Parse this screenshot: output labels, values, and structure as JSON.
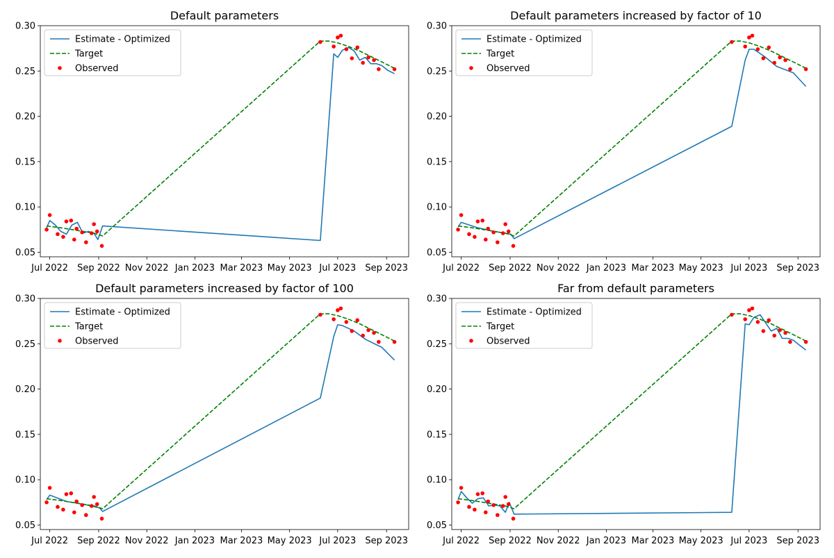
{
  "chart_data": [
    {
      "type": "line",
      "title": "Default parameters",
      "xlabel": "",
      "ylabel": "",
      "xlim": [
        "2022-06-19",
        "2023-09-29"
      ],
      "ylim": [
        0.045,
        0.3
      ],
      "x_ticks": [
        "2022-07-01",
        "2022-09-01",
        "2022-11-01",
        "2023-01-01",
        "2023-03-01",
        "2023-05-01",
        "2023-07-01",
        "2023-09-01"
      ],
      "x_tick_labels": [
        "Jul 2022",
        "Sep 2022",
        "Nov 2022",
        "Jan 2023",
        "Mar 2023",
        "May 2023",
        "Jul 2023",
        "Sep 2023"
      ],
      "y_ticks": [
        0.05,
        0.1,
        0.15,
        0.2,
        0.25,
        0.3
      ],
      "y_tick_labels": [
        "0.05",
        "0.10",
        "0.15",
        "0.20",
        "0.25",
        "0.30"
      ],
      "grid": false,
      "legend_position": "top-left",
      "series": [
        {
          "name": "Estimate - Optimized",
          "style": "solid",
          "color": "#1f77b4",
          "x": [
            "2022-06-27",
            "2022-07-01",
            "2022-07-08",
            "2022-07-15",
            "2022-07-22",
            "2022-07-29",
            "2022-08-05",
            "2022-08-12",
            "2022-08-19",
            "2022-08-26",
            "2022-08-31",
            "2022-09-06",
            "2023-06-09",
            "2023-06-26",
            "2023-07-01",
            "2023-07-07",
            "2023-07-15",
            "2023-07-22",
            "2023-07-29",
            "2023-08-05",
            "2023-08-12",
            "2023-08-19",
            "2023-08-26",
            "2023-09-02",
            "2023-09-11"
          ],
          "y": [
            0.077,
            0.085,
            0.08,
            0.073,
            0.07,
            0.08,
            0.083,
            0.071,
            0.073,
            0.071,
            0.064,
            0.079,
            0.063,
            0.269,
            0.265,
            0.273,
            0.276,
            0.272,
            0.262,
            0.265,
            0.258,
            0.258,
            0.256,
            0.251,
            0.247
          ]
        },
        {
          "name": "Target",
          "style": "dashed",
          "color": "#008000",
          "x": [
            "2022-06-27",
            "2022-07-15",
            "2022-08-05",
            "2022-08-26",
            "2022-09-06",
            "2023-06-09",
            "2023-06-20",
            "2023-07-01",
            "2023-07-15",
            "2023-07-29",
            "2023-08-12",
            "2023-08-26",
            "2023-09-11"
          ],
          "y": [
            0.079,
            0.077,
            0.074,
            0.071,
            0.068,
            0.283,
            0.283,
            0.281,
            0.277,
            0.272,
            0.266,
            0.26,
            0.253
          ]
        },
        {
          "name": "Observed",
          "style": "points",
          "color": "#ff0000",
          "x": [
            "2022-06-27",
            "2022-07-01",
            "2022-07-11",
            "2022-07-18",
            "2022-07-22",
            "2022-07-28",
            "2022-08-01",
            "2022-08-04",
            "2022-08-11",
            "2022-08-16",
            "2022-08-23",
            "2022-08-26",
            "2022-08-30",
            "2022-09-05",
            "2023-06-09",
            "2023-06-26",
            "2023-07-01",
            "2023-07-05",
            "2023-07-12",
            "2023-07-19",
            "2023-07-26",
            "2023-08-02",
            "2023-08-09",
            "2023-08-16",
            "2023-08-22",
            "2023-09-11"
          ],
          "y": [
            0.075,
            0.091,
            0.07,
            0.067,
            0.084,
            0.085,
            0.064,
            0.076,
            0.072,
            0.061,
            0.071,
            0.081,
            0.073,
            0.057,
            0.282,
            0.277,
            0.287,
            0.289,
            0.274,
            0.264,
            0.276,
            0.259,
            0.265,
            0.262,
            0.252,
            0.252
          ]
        }
      ]
    },
    {
      "type": "line",
      "title": "Default parameters increased by factor of 10",
      "xlabel": "",
      "ylabel": "",
      "xlim": [
        "2022-06-19",
        "2023-09-29"
      ],
      "ylim": [
        0.045,
        0.3
      ],
      "x_ticks": [
        "2022-07-01",
        "2022-09-01",
        "2022-11-01",
        "2023-01-01",
        "2023-03-01",
        "2023-05-01",
        "2023-07-01",
        "2023-09-01"
      ],
      "x_tick_labels": [
        "Jul 2022",
        "Sep 2022",
        "Nov 2022",
        "Jan 2023",
        "Mar 2023",
        "May 2023",
        "Jul 2023",
        "Sep 2023"
      ],
      "y_ticks": [
        0.05,
        0.1,
        0.15,
        0.2,
        0.25,
        0.3
      ],
      "y_tick_labels": [
        "0.05",
        "0.10",
        "0.15",
        "0.20",
        "0.25",
        "0.30"
      ],
      "grid": false,
      "legend_position": "top-left",
      "series": [
        {
          "name": "Estimate - Optimized",
          "style": "solid",
          "color": "#1f77b4",
          "x": [
            "2022-06-27",
            "2022-07-01",
            "2022-07-22",
            "2022-08-12",
            "2022-09-02",
            "2022-09-06",
            "2023-06-09",
            "2023-06-26",
            "2023-07-01",
            "2023-07-07",
            "2023-07-22",
            "2023-08-05",
            "2023-08-26",
            "2023-09-11"
          ],
          "y": [
            0.078,
            0.083,
            0.077,
            0.073,
            0.07,
            0.065,
            0.189,
            0.262,
            0.274,
            0.274,
            0.265,
            0.255,
            0.248,
            0.233
          ]
        },
        {
          "name": "Target",
          "style": "dashed",
          "color": "#008000",
          "x": [
            "2022-06-27",
            "2022-07-15",
            "2022-08-05",
            "2022-08-26",
            "2022-09-06",
            "2023-06-09",
            "2023-06-20",
            "2023-07-01",
            "2023-07-15",
            "2023-07-29",
            "2023-08-12",
            "2023-08-26",
            "2023-09-11"
          ],
          "y": [
            0.079,
            0.077,
            0.074,
            0.071,
            0.068,
            0.283,
            0.283,
            0.281,
            0.277,
            0.272,
            0.266,
            0.26,
            0.253
          ]
        },
        {
          "name": "Observed",
          "style": "points",
          "color": "#ff0000",
          "x": [
            "2022-06-27",
            "2022-07-01",
            "2022-07-11",
            "2022-07-18",
            "2022-07-22",
            "2022-07-28",
            "2022-08-01",
            "2022-08-04",
            "2022-08-11",
            "2022-08-16",
            "2022-08-23",
            "2022-08-26",
            "2022-08-30",
            "2022-09-05",
            "2023-06-09",
            "2023-06-26",
            "2023-07-01",
            "2023-07-05",
            "2023-07-12",
            "2023-07-19",
            "2023-07-26",
            "2023-08-02",
            "2023-08-09",
            "2023-08-16",
            "2023-08-22",
            "2023-09-11"
          ],
          "y": [
            0.075,
            0.091,
            0.07,
            0.067,
            0.084,
            0.085,
            0.064,
            0.076,
            0.072,
            0.061,
            0.071,
            0.081,
            0.073,
            0.057,
            0.282,
            0.277,
            0.287,
            0.289,
            0.274,
            0.264,
            0.276,
            0.259,
            0.265,
            0.262,
            0.252,
            0.252
          ]
        }
      ]
    },
    {
      "type": "line",
      "title": "Default parameters increased by factor of 100",
      "xlabel": "",
      "ylabel": "",
      "xlim": [
        "2022-06-19",
        "2023-09-29"
      ],
      "ylim": [
        0.045,
        0.3
      ],
      "x_ticks": [
        "2022-07-01",
        "2022-09-01",
        "2022-11-01",
        "2023-01-01",
        "2023-03-01",
        "2023-05-01",
        "2023-07-01",
        "2023-09-01"
      ],
      "x_tick_labels": [
        "Jul 2022",
        "Sep 2022",
        "Nov 2022",
        "Jan 2023",
        "Mar 2023",
        "May 2023",
        "Jul 2023",
        "Sep 2023"
      ],
      "y_ticks": [
        0.05,
        0.1,
        0.15,
        0.2,
        0.25,
        0.3
      ],
      "y_tick_labels": [
        "0.05",
        "0.10",
        "0.15",
        "0.20",
        "0.25",
        "0.30"
      ],
      "grid": false,
      "legend_position": "top-left",
      "series": [
        {
          "name": "Estimate - Optimized",
          "style": "solid",
          "color": "#1f77b4",
          "x": [
            "2022-06-27",
            "2022-07-01",
            "2022-07-22",
            "2022-08-12",
            "2022-09-02",
            "2022-09-06",
            "2023-06-09",
            "2023-06-26",
            "2023-07-01",
            "2023-07-07",
            "2023-07-22",
            "2023-08-05",
            "2023-08-26",
            "2023-09-11"
          ],
          "y": [
            0.078,
            0.083,
            0.076,
            0.073,
            0.069,
            0.065,
            0.19,
            0.258,
            0.271,
            0.27,
            0.264,
            0.255,
            0.246,
            0.232
          ]
        },
        {
          "name": "Target",
          "style": "dashed",
          "color": "#008000",
          "x": [
            "2022-06-27",
            "2022-07-15",
            "2022-08-05",
            "2022-08-26",
            "2022-09-06",
            "2023-06-09",
            "2023-06-20",
            "2023-07-01",
            "2023-07-15",
            "2023-07-29",
            "2023-08-12",
            "2023-08-26",
            "2023-09-11"
          ],
          "y": [
            0.079,
            0.077,
            0.074,
            0.071,
            0.068,
            0.283,
            0.283,
            0.281,
            0.277,
            0.272,
            0.266,
            0.26,
            0.253
          ]
        },
        {
          "name": "Observed",
          "style": "points",
          "color": "#ff0000",
          "x": [
            "2022-06-27",
            "2022-07-01",
            "2022-07-11",
            "2022-07-18",
            "2022-07-22",
            "2022-07-28",
            "2022-08-01",
            "2022-08-04",
            "2022-08-11",
            "2022-08-16",
            "2022-08-23",
            "2022-08-26",
            "2022-08-30",
            "2022-09-05",
            "2023-06-09",
            "2023-06-26",
            "2023-07-01",
            "2023-07-05",
            "2023-07-12",
            "2023-07-19",
            "2023-07-26",
            "2023-08-02",
            "2023-08-09",
            "2023-08-16",
            "2023-08-22",
            "2023-09-11"
          ],
          "y": [
            0.075,
            0.091,
            0.07,
            0.067,
            0.084,
            0.085,
            0.064,
            0.076,
            0.072,
            0.061,
            0.071,
            0.081,
            0.073,
            0.057,
            0.282,
            0.277,
            0.287,
            0.289,
            0.274,
            0.264,
            0.276,
            0.259,
            0.265,
            0.262,
            0.252,
            0.252
          ]
        }
      ]
    },
    {
      "type": "line",
      "title": "Far from default parameters",
      "xlabel": "",
      "ylabel": "",
      "xlim": [
        "2022-06-19",
        "2023-09-29"
      ],
      "ylim": [
        0.045,
        0.3
      ],
      "x_ticks": [
        "2022-07-01",
        "2022-09-01",
        "2022-11-01",
        "2023-01-01",
        "2023-03-01",
        "2023-05-01",
        "2023-07-01",
        "2023-09-01"
      ],
      "x_tick_labels": [
        "Jul 2022",
        "Sep 2022",
        "Nov 2022",
        "Jan 2023",
        "Mar 2023",
        "May 2023",
        "Jul 2023",
        "Sep 2023"
      ],
      "y_ticks": [
        0.05,
        0.1,
        0.15,
        0.2,
        0.25,
        0.3
      ],
      "y_tick_labels": [
        "0.05",
        "0.10",
        "0.15",
        "0.20",
        "0.25",
        "0.30"
      ],
      "grid": false,
      "legend_position": "top-left",
      "series": [
        {
          "name": "Estimate - Optimized",
          "style": "solid",
          "color": "#1f77b4",
          "x": [
            "2022-06-27",
            "2022-07-01",
            "2022-07-08",
            "2022-07-15",
            "2022-07-22",
            "2022-07-29",
            "2022-08-05",
            "2022-08-12",
            "2022-08-19",
            "2022-08-26",
            "2022-08-31",
            "2022-09-06",
            "2023-06-09",
            "2023-06-26",
            "2023-07-01",
            "2023-07-07",
            "2023-07-15",
            "2023-07-22",
            "2023-07-29",
            "2023-08-05",
            "2023-08-12",
            "2023-08-19",
            "2023-08-26",
            "2023-09-02",
            "2023-09-11"
          ],
          "y": [
            0.078,
            0.087,
            0.08,
            0.074,
            0.079,
            0.08,
            0.071,
            0.072,
            0.071,
            0.064,
            0.075,
            0.062,
            0.064,
            0.272,
            0.271,
            0.279,
            0.282,
            0.273,
            0.264,
            0.267,
            0.256,
            0.256,
            0.254,
            0.249,
            0.243
          ]
        },
        {
          "name": "Target",
          "style": "dashed",
          "color": "#008000",
          "x": [
            "2022-06-27",
            "2022-07-15",
            "2022-08-05",
            "2022-08-26",
            "2022-09-06",
            "2023-06-09",
            "2023-06-20",
            "2023-07-01",
            "2023-07-15",
            "2023-07-29",
            "2023-08-12",
            "2023-08-26",
            "2023-09-11"
          ],
          "y": [
            0.079,
            0.077,
            0.074,
            0.071,
            0.068,
            0.283,
            0.283,
            0.281,
            0.277,
            0.272,
            0.266,
            0.26,
            0.253
          ]
        },
        {
          "name": "Observed",
          "style": "points",
          "color": "#ff0000",
          "x": [
            "2022-06-27",
            "2022-07-01",
            "2022-07-11",
            "2022-07-18",
            "2022-07-22",
            "2022-07-28",
            "2022-08-01",
            "2022-08-04",
            "2022-08-11",
            "2022-08-16",
            "2022-08-23",
            "2022-08-26",
            "2022-08-30",
            "2022-09-05",
            "2023-06-09",
            "2023-06-26",
            "2023-07-01",
            "2023-07-05",
            "2023-07-12",
            "2023-07-19",
            "2023-07-26",
            "2023-08-02",
            "2023-08-09",
            "2023-08-16",
            "2023-08-22",
            "2023-09-11"
          ],
          "y": [
            0.075,
            0.091,
            0.07,
            0.067,
            0.084,
            0.085,
            0.064,
            0.076,
            0.072,
            0.061,
            0.071,
            0.081,
            0.073,
            0.057,
            0.282,
            0.277,
            0.287,
            0.289,
            0.274,
            0.264,
            0.276,
            0.259,
            0.265,
            0.262,
            0.252,
            0.252
          ]
        }
      ]
    }
  ]
}
